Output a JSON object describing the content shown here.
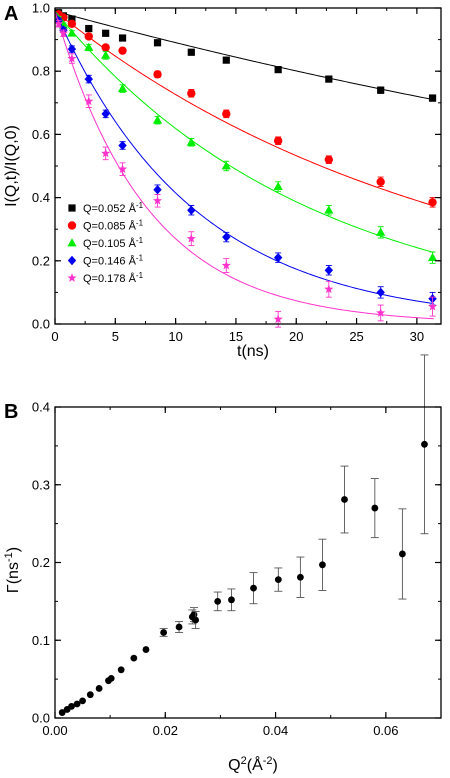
{
  "chart_data": [
    {
      "type": "scatter",
      "panel_label": "A",
      "xlabel": "t(ns)",
      "ylabel": "I(Q,t)/I(Q,0)",
      "xlim": [
        0,
        32
      ],
      "ylim": [
        0,
        1.0
      ],
      "xticks": [
        0,
        5,
        10,
        15,
        20,
        25,
        30
      ],
      "yticks": [
        0.0,
        0.2,
        0.4,
        0.6,
        0.8,
        1.0
      ],
      "ytick_labels": [
        "0.0",
        "0.2",
        "0.4",
        "0.6",
        "0.8",
        "1.0"
      ],
      "legend_position": "bottom-left",
      "series": [
        {
          "name": "Q=0.052 Å-1",
          "q": "0.052",
          "color": "#000000",
          "marker": "square",
          "fit_decay": 0.0106,
          "fit_amplitude": 0.99,
          "x": [
            0.3,
            0.7,
            1.4,
            2.8,
            4.2,
            5.6,
            8.5,
            11.3,
            14.2,
            18.5,
            22.7,
            27.0,
            31.3
          ],
          "y": [
            0.985,
            0.975,
            0.965,
            0.935,
            0.92,
            0.905,
            0.89,
            0.86,
            0.835,
            0.805,
            0.775,
            0.74,
            0.715
          ],
          "err": [
            0.008,
            0.006,
            0.006,
            0.006,
            0.006,
            0.006,
            0.008,
            0.008,
            0.008,
            0.008,
            0.008,
            0.01,
            0.01
          ]
        },
        {
          "name": "Q=0.085 Å-1",
          "q": "0.085",
          "color": "#ff0000",
          "marker": "circle",
          "fit_decay": 0.031,
          "fit_amplitude": 0.99,
          "x": [
            0.3,
            0.7,
            1.4,
            2.8,
            4.2,
            5.6,
            8.5,
            11.3,
            14.2,
            18.5,
            22.7,
            27.0,
            31.3
          ],
          "y": [
            0.98,
            0.97,
            0.95,
            0.91,
            0.875,
            0.865,
            0.79,
            0.73,
            0.665,
            0.58,
            0.52,
            0.45,
            0.385
          ],
          "err": [
            0.008,
            0.006,
            0.008,
            0.008,
            0.008,
            0.008,
            0.01,
            0.012,
            0.012,
            0.012,
            0.012,
            0.015,
            0.015
          ]
        },
        {
          "name": "Q=0.105 Å-1",
          "q": "0.105",
          "color": "#00ee00",
          "marker": "triangle",
          "fit_decay": 0.047,
          "fit_amplitude": 0.99,
          "x": [
            0.3,
            0.7,
            1.4,
            2.8,
            4.2,
            5.6,
            8.5,
            11.3,
            14.2,
            18.5,
            22.7,
            27.0,
            31.3
          ],
          "y": [
            0.965,
            0.945,
            0.92,
            0.875,
            0.85,
            0.745,
            0.645,
            0.575,
            0.5,
            0.435,
            0.36,
            0.29,
            0.21
          ],
          "err": [
            0.008,
            0.008,
            0.008,
            0.01,
            0.012,
            0.012,
            0.012,
            0.012,
            0.015,
            0.015,
            0.015,
            0.018,
            0.018
          ]
        },
        {
          "name": "Q=0.146 Å-1",
          "q": "0.146",
          "color": "#0000ee",
          "marker": "diamond",
          "fit_decay": 0.087,
          "fit_amplitude": 0.99,
          "x": [
            0.3,
            0.7,
            1.4,
            2.8,
            4.2,
            5.6,
            8.5,
            11.3,
            14.2,
            18.5,
            22.7,
            27.0,
            31.3
          ],
          "y": [
            0.96,
            0.93,
            0.87,
            0.775,
            0.665,
            0.565,
            0.425,
            0.36,
            0.275,
            0.21,
            0.17,
            0.1,
            0.08
          ],
          "err": [
            0.008,
            0.008,
            0.01,
            0.012,
            0.012,
            0.012,
            0.015,
            0.015,
            0.015,
            0.015,
            0.015,
            0.018,
            0.02
          ]
        },
        {
          "name": "Q=0.178 Å-1",
          "q": "0.178",
          "color": "#ff33cc",
          "marker": "star",
          "fit_decay": 0.13,
          "fit_amplitude": 0.99,
          "x": [
            0.3,
            0.7,
            1.4,
            2.8,
            4.2,
            5.6,
            8.5,
            11.3,
            14.2,
            18.5,
            22.7,
            27.0,
            31.3
          ],
          "y": [
            0.95,
            0.92,
            0.84,
            0.705,
            0.54,
            0.49,
            0.39,
            0.27,
            0.185,
            0.015,
            0.11,
            0.035,
            0.055
          ],
          "err": [
            0.01,
            0.01,
            0.015,
            0.02,
            0.02,
            0.02,
            0.02,
            0.022,
            0.022,
            0.025,
            0.025,
            0.025,
            0.03
          ]
        }
      ]
    },
    {
      "type": "scatter",
      "panel_label": "B",
      "xlabel": "Q²(Å-2)",
      "ylabel": "Γ(ns-1)",
      "xlim": [
        0.0,
        0.07
      ],
      "ylim": [
        0.0,
        0.4
      ],
      "xticks": [
        0.0,
        0.02,
        0.04,
        0.06
      ],
      "xtick_labels": [
        "0.00",
        "0.02",
        "0.04",
        "0.06"
      ],
      "yticks": [
        0.0,
        0.1,
        0.2,
        0.3,
        0.4
      ],
      "ytick_labels": [
        "0.0",
        "0.1",
        "0.2",
        "0.3",
        "0.4"
      ],
      "series": [
        {
          "color": "#000000",
          "marker": "circle",
          "x": [
            0.0013,
            0.0022,
            0.003,
            0.004,
            0.005,
            0.0064,
            0.008,
            0.0097,
            0.0102,
            0.012,
            0.0143,
            0.0165,
            0.0197,
            0.0225,
            0.0249,
            0.0252,
            0.0255,
            0.0295,
            0.032,
            0.036,
            0.0405,
            0.0445,
            0.0485,
            0.0525,
            0.058,
            0.063,
            0.067
          ],
          "y": [
            0.007,
            0.011,
            0.015,
            0.018,
            0.022,
            0.03,
            0.038,
            0.048,
            0.051,
            0.062,
            0.077,
            0.088,
            0.11,
            0.117,
            0.13,
            0.133,
            0.126,
            0.15,
            0.152,
            0.167,
            0.178,
            0.181,
            0.197,
            0.281,
            0.27,
            0.211,
            0.352
          ],
          "err": [
            0,
            0,
            0,
            0,
            0,
            0,
            0,
            0,
            0,
            0,
            0,
            0,
            0.005,
            0.007,
            0.009,
            0.009,
            0.011,
            0.012,
            0.014,
            0.02,
            0.015,
            0.026,
            0.033,
            0.043,
            0.038,
            0.058,
            0.115
          ]
        }
      ]
    }
  ]
}
